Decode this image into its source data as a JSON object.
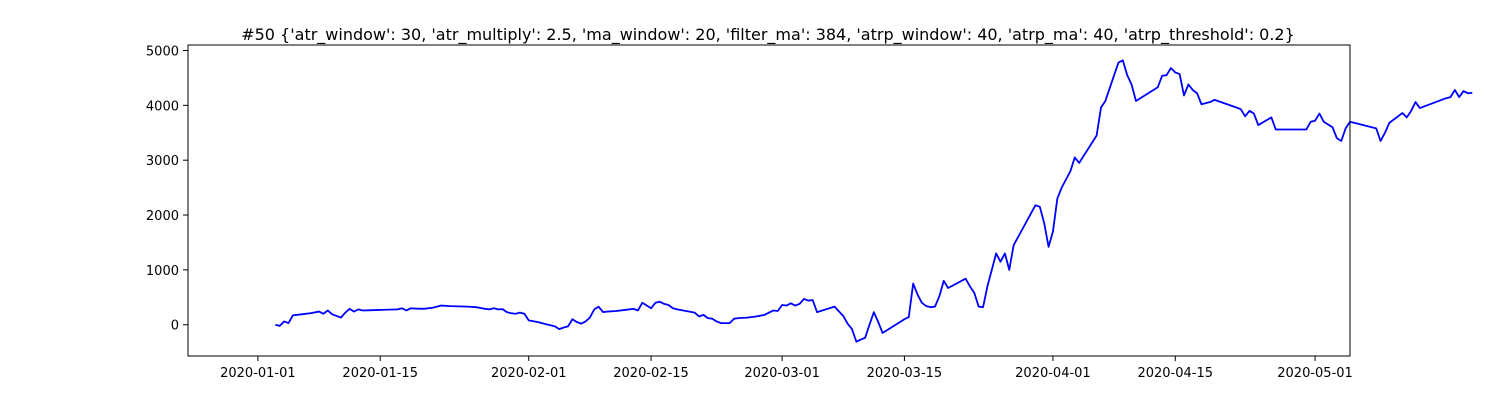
{
  "chart_data": {
    "type": "line",
    "title": "#50 {'atr_window': 30, 'atr_multiply': 2.5, 'ma_window': 20, 'filter_ma': 384, 'atrp_window': 40, 'atrp_ma': 40, 'atrp_threshold': 0.2}",
    "xlabel": "",
    "ylabel": "",
    "x_ticks": [
      "2020-01-01",
      "2020-01-15",
      "2020-02-01",
      "2020-02-15",
      "2020-03-01",
      "2020-03-15",
      "2020-04-01",
      "2020-04-15",
      "2020-05-01"
    ],
    "y_ticks": [
      0,
      1000,
      2000,
      3000,
      4000,
      5000
    ],
    "xlim": [
      "2019-12-24",
      "2020-05-05"
    ],
    "ylim": [
      -570,
      5100
    ],
    "grid": false,
    "series": [
      {
        "color": "#0000ff",
        "points": [
          [
            "2020-01-03",
            0
          ],
          [
            "2020-01-03T12",
            -20
          ],
          [
            "2020-01-04",
            60
          ],
          [
            "2020-01-04T12",
            30
          ],
          [
            "2020-01-05",
            170
          ],
          [
            "2020-01-06",
            190
          ],
          [
            "2020-01-07",
            210
          ],
          [
            "2020-01-08",
            240
          ],
          [
            "2020-01-08T12",
            200
          ],
          [
            "2020-01-09",
            260
          ],
          [
            "2020-01-09T12",
            190
          ],
          [
            "2020-01-10",
            160
          ],
          [
            "2020-01-10T12",
            130
          ],
          [
            "2020-01-11",
            220
          ],
          [
            "2020-01-11T12",
            290
          ],
          [
            "2020-01-12",
            240
          ],
          [
            "2020-01-12T12",
            280
          ],
          [
            "2020-01-13",
            260
          ],
          [
            "2020-01-14",
            265
          ],
          [
            "2020-01-15",
            270
          ],
          [
            "2020-01-16",
            275
          ],
          [
            "2020-01-17",
            280
          ],
          [
            "2020-01-17T12",
            300
          ],
          [
            "2020-01-18",
            260
          ],
          [
            "2020-01-18T12",
            300
          ],
          [
            "2020-01-19",
            295
          ],
          [
            "2020-01-20",
            290
          ],
          [
            "2020-01-21",
            310
          ],
          [
            "2020-01-22",
            350
          ],
          [
            "2020-01-23",
            340
          ],
          [
            "2020-01-24",
            335
          ],
          [
            "2020-01-25",
            330
          ],
          [
            "2020-01-26",
            320
          ],
          [
            "2020-01-27",
            290
          ],
          [
            "2020-01-27T12",
            280
          ],
          [
            "2020-01-28",
            300
          ],
          [
            "2020-01-28T12",
            280
          ],
          [
            "2020-01-29",
            285
          ],
          [
            "2020-01-29T12",
            230
          ],
          [
            "2020-01-30",
            210
          ],
          [
            "2020-01-30T12",
            200
          ],
          [
            "2020-01-31",
            220
          ],
          [
            "2020-01-31T12",
            200
          ],
          [
            "2020-02-01",
            80
          ],
          [
            "2020-02-02",
            50
          ],
          [
            "2020-02-03",
            10
          ],
          [
            "2020-02-04",
            -30
          ],
          [
            "2020-02-04T12",
            -80
          ],
          [
            "2020-02-05",
            -50
          ],
          [
            "2020-02-05T12",
            -30
          ],
          [
            "2020-02-06",
            100
          ],
          [
            "2020-02-06T12",
            50
          ],
          [
            "2020-02-07",
            20
          ],
          [
            "2020-02-07T12",
            60
          ],
          [
            "2020-02-08",
            130
          ],
          [
            "2020-02-08T12",
            280
          ],
          [
            "2020-02-09",
            330
          ],
          [
            "2020-02-09T12",
            230
          ],
          [
            "2020-02-10",
            240
          ],
          [
            "2020-02-11",
            250
          ],
          [
            "2020-02-12",
            270
          ],
          [
            "2020-02-13",
            290
          ],
          [
            "2020-02-13T12",
            260
          ],
          [
            "2020-02-14",
            400
          ],
          [
            "2020-02-14T12",
            350
          ],
          [
            "2020-02-15",
            300
          ],
          [
            "2020-02-15T12",
            400
          ],
          [
            "2020-02-16",
            420
          ],
          [
            "2020-02-16T12",
            380
          ],
          [
            "2020-02-17",
            360
          ],
          [
            "2020-02-17T12",
            300
          ],
          [
            "2020-02-18",
            280
          ],
          [
            "2020-02-19",
            250
          ],
          [
            "2020-02-20",
            220
          ],
          [
            "2020-02-20T12",
            150
          ],
          [
            "2020-02-21",
            180
          ],
          [
            "2020-02-21T12",
            120
          ],
          [
            "2020-02-22",
            110
          ],
          [
            "2020-02-22T12",
            60
          ],
          [
            "2020-02-23",
            30
          ],
          [
            "2020-02-24",
            30
          ],
          [
            "2020-02-24T12",
            110
          ],
          [
            "2020-02-25",
            120
          ],
          [
            "2020-02-26",
            130
          ],
          [
            "2020-02-27",
            150
          ],
          [
            "2020-02-28",
            180
          ],
          [
            "2020-02-29",
            260
          ],
          [
            "2020-02-29T12",
            250
          ],
          [
            "2020-03-01",
            360
          ],
          [
            "2020-03-01T12",
            350
          ],
          [
            "2020-03-02",
            390
          ],
          [
            "2020-03-02T12",
            350
          ],
          [
            "2020-03-03",
            380
          ],
          [
            "2020-03-03T12",
            470
          ],
          [
            "2020-03-04",
            440
          ],
          [
            "2020-03-04T12",
            450
          ],
          [
            "2020-03-05",
            230
          ],
          [
            "2020-03-07",
            330
          ],
          [
            "2020-03-08",
            160
          ],
          [
            "2020-03-08T12",
            20
          ],
          [
            "2020-03-09",
            -80
          ],
          [
            "2020-03-09T12",
            -310
          ],
          [
            "2020-03-10",
            -270
          ],
          [
            "2020-03-10T12",
            -240
          ],
          [
            "2020-03-11",
            0
          ],
          [
            "2020-03-11T12",
            230
          ],
          [
            "2020-03-12",
            50
          ],
          [
            "2020-03-12T12",
            -150
          ],
          [
            "2020-03-15",
            100
          ],
          [
            "2020-03-15T12",
            140
          ],
          [
            "2020-03-16",
            750
          ],
          [
            "2020-03-16T12",
            550
          ],
          [
            "2020-03-17",
            400
          ],
          [
            "2020-03-17T12",
            340
          ],
          [
            "2020-03-18",
            320
          ],
          [
            "2020-03-18T12",
            330
          ],
          [
            "2020-03-19",
            520
          ],
          [
            "2020-03-19T12",
            800
          ],
          [
            "2020-03-20",
            670
          ],
          [
            "2020-03-22",
            840
          ],
          [
            "2020-03-22T12",
            700
          ],
          [
            "2020-03-23",
            580
          ],
          [
            "2020-03-23T12",
            330
          ],
          [
            "2020-03-24",
            320
          ],
          [
            "2020-03-24T12",
            700
          ],
          [
            "2020-03-25",
            1000
          ],
          [
            "2020-03-25T12",
            1300
          ],
          [
            "2020-03-26",
            1150
          ],
          [
            "2020-03-26T12",
            1300
          ],
          [
            "2020-03-27",
            1000
          ],
          [
            "2020-03-27T12",
            1450
          ],
          [
            "2020-03-30",
            2180
          ],
          [
            "2020-03-30T12",
            2150
          ],
          [
            "2020-03-31",
            1850
          ],
          [
            "2020-03-31T12",
            1420
          ],
          [
            "2020-04-01",
            1700
          ],
          [
            "2020-04-01T12",
            2300
          ],
          [
            "2020-04-02",
            2500
          ],
          [
            "2020-04-03",
            2800
          ],
          [
            "2020-04-03T12",
            3050
          ],
          [
            "2020-04-04",
            2950
          ],
          [
            "2020-04-06",
            3450
          ],
          [
            "2020-04-06T12",
            3960
          ],
          [
            "2020-04-07",
            4080
          ],
          [
            "2020-04-08",
            4550
          ],
          [
            "2020-04-08T12",
            4780
          ],
          [
            "2020-04-09",
            4820
          ],
          [
            "2020-04-09T12",
            4550
          ],
          [
            "2020-04-10",
            4380
          ],
          [
            "2020-04-10T12",
            4080
          ],
          [
            "2020-04-13",
            4330
          ],
          [
            "2020-04-13T12",
            4540
          ],
          [
            "2020-04-14",
            4550
          ],
          [
            "2020-04-14T12",
            4680
          ],
          [
            "2020-04-15",
            4600
          ],
          [
            "2020-04-15T12",
            4570
          ],
          [
            "2020-04-16",
            4180
          ],
          [
            "2020-04-16T12",
            4380
          ],
          [
            "2020-04-17",
            4280
          ],
          [
            "2020-04-17T12",
            4220
          ],
          [
            "2020-04-18",
            4020
          ],
          [
            "2020-04-19",
            4060
          ],
          [
            "2020-04-19T12",
            4100
          ],
          [
            "2020-04-22",
            3960
          ],
          [
            "2020-04-22T12",
            3930
          ],
          [
            "2020-04-23",
            3800
          ],
          [
            "2020-04-23T12",
            3900
          ],
          [
            "2020-04-24",
            3850
          ],
          [
            "2020-04-24T12",
            3640
          ],
          [
            "2020-04-26",
            3780
          ],
          [
            "2020-04-26T12",
            3560
          ],
          [
            "2020-04-30",
            3560
          ],
          [
            "2020-04-30T12",
            3700
          ],
          [
            "2020-05-01",
            3720
          ],
          [
            "2020-05-01T12",
            3850
          ],
          [
            "2020-05-02",
            3700
          ],
          [
            "2020-05-03",
            3600
          ],
          [
            "2020-05-03T12",
            3400
          ],
          [
            "2020-05-04",
            3350
          ],
          [
            "2020-05-04T12",
            3580
          ],
          [
            "2020-05-05",
            3700
          ],
          [
            "2020-05-08",
            3580
          ],
          [
            "2020-05-08T12",
            3350
          ],
          [
            "2020-05-09",
            3500
          ],
          [
            "2020-05-09T12",
            3680
          ],
          [
            "2020-05-11",
            3860
          ],
          [
            "2020-05-11T12",
            3780
          ],
          [
            "2020-05-12",
            3900
          ],
          [
            "2020-05-12T12",
            4060
          ],
          [
            "2020-05-13",
            3950
          ],
          [
            "2020-05-16",
            4130
          ],
          [
            "2020-05-16T12",
            4150
          ],
          [
            "2020-05-17",
            4280
          ],
          [
            "2020-05-17T12",
            4150
          ],
          [
            "2020-05-18",
            4260
          ],
          [
            "2020-05-18T12",
            4220
          ],
          [
            "2020-05-19",
            4230
          ]
        ]
      }
    ]
  }
}
